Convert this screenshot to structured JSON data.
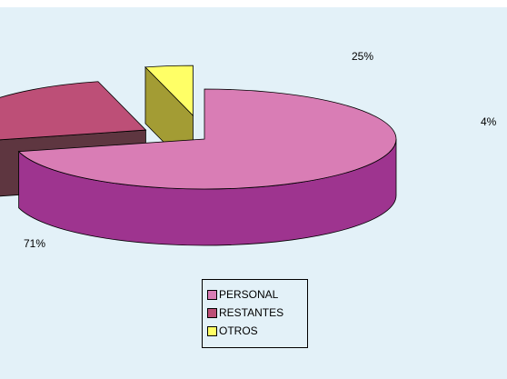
{
  "chart_data": {
    "type": "pie",
    "categories": [
      "PERSONAL",
      "RESTANTES",
      "OTROS"
    ],
    "values": [
      71,
      25,
      4
    ],
    "value_labels": [
      "71%",
      "25%",
      "4%"
    ],
    "colors": {
      "PERSONAL": {
        "top": "#d97db5",
        "side": "#9e348f"
      },
      "RESTANTES": {
        "top": "#bd4f77",
        "side": "#5e3640"
      },
      "OTROS": {
        "top": "#ffff66",
        "side": "#a39c34"
      }
    },
    "three_d": true,
    "exploded": true,
    "legend_position": "bottom",
    "background": "#e3f1f8"
  }
}
